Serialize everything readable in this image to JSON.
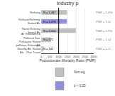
{
  "chart_data": {
    "type": "bar",
    "orientation": "horizontal",
    "title": "Industry p",
    "xlabel": "Proportionate Mortality Ratio (PMR)",
    "categories": [
      "Refining",
      "Refined Refining, Stated Alc",
      "Novel Refining Stated Alc",
      "Air Pollutants & Polluted Stat. Pollutants Stated Alc",
      "pollution Refining & Novelty Alc Stated Alc - Plus Travel"
    ],
    "values": [
      1487,
      1478,
      2000,
      571,
      141
    ],
    "value_labels": [
      "N = 1,487",
      "N = 1,478",
      "N = 2,000",
      "N = 571",
      "N = 141"
    ],
    "data_labels": true,
    "colors": [
      "#c0c0c0",
      "#9090dd",
      "#c0c0c0",
      "#c0c0c0",
      "#c0c0c0"
    ],
    "xlim": [
      0,
      3000
    ],
    "xticks": [
      0,
      500,
      1000,
      1500,
      2000,
      2500,
      3000
    ],
    "ref_line": 1000,
    "pmr_labels": [
      "PMR = 1.490",
      "PMR = 1.52",
      "PMR = 1.990",
      "PMR = 1.54",
      "PMR = 1.27"
    ],
    "legend": "bottom",
    "legend_entries": [
      {
        "name": "Non-sig",
        "color": "#c0c0c0"
      },
      {
        "name": "p < 0.05",
        "color": "#9090dd"
      }
    ]
  }
}
